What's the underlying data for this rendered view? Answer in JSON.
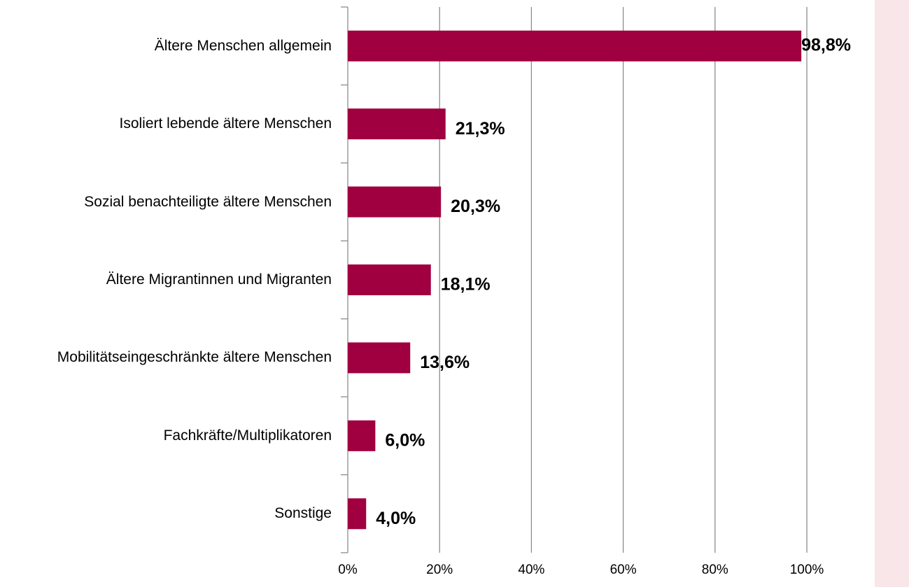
{
  "chart_data": {
    "type": "bar",
    "orientation": "horizontal",
    "categories": [
      "Ältere Menschen allgemein",
      "Isoliert lebende ältere Menschen",
      "Sozial benachteiligte ältere Menschen",
      "Ältere Migrantinnen und Migranten",
      "Mobilitätseingeschränkte ältere Menschen",
      "Fachkräfte/Multiplikatoren",
      "Sonstige"
    ],
    "values": [
      98.8,
      21.3,
      20.3,
      18.1,
      13.6,
      6.0,
      4.0
    ],
    "value_labels": [
      "98,8%",
      "21,3%",
      "20,3%",
      "18,1%",
      "13,6%",
      "6,0%",
      "4,0%"
    ],
    "color": "#a0003f",
    "xlim": [
      0,
      114.5
    ],
    "xticks": [
      {
        "value": 0,
        "label": "0%"
      },
      {
        "value": 20,
        "label": "20%"
      },
      {
        "value": 40,
        "label": "40%"
      },
      {
        "value": 60,
        "label": "60%"
      },
      {
        "value": 80,
        "label": "80%"
      },
      {
        "value": 100,
        "label": "100%"
      }
    ],
    "grid": true
  }
}
